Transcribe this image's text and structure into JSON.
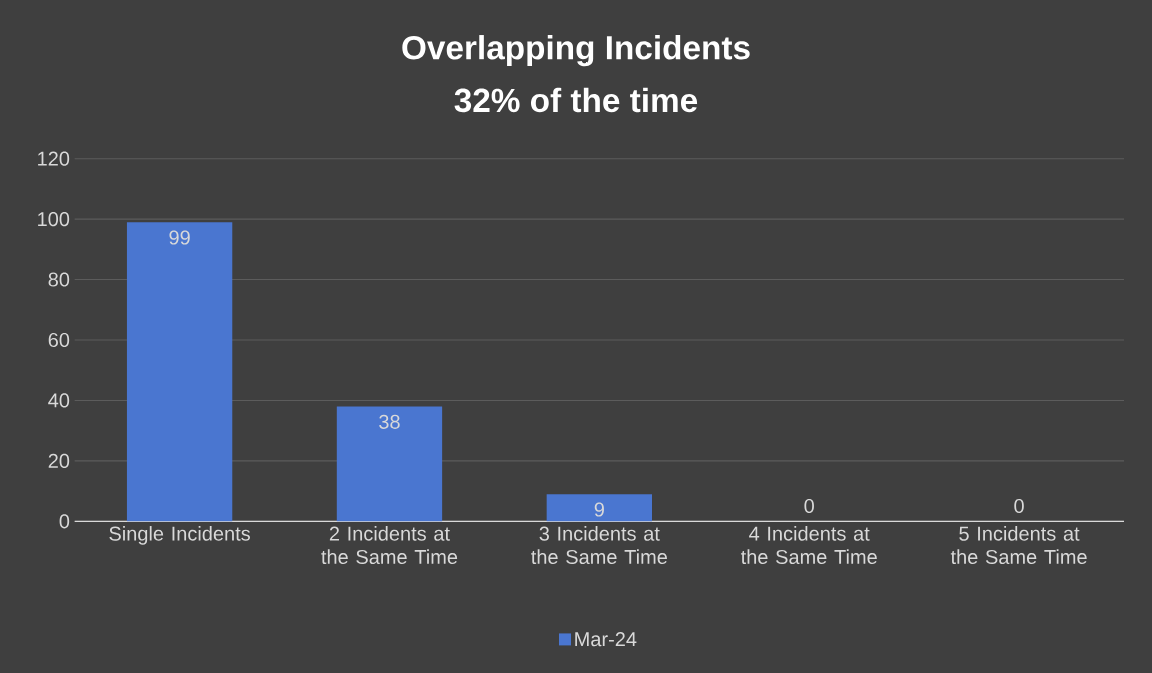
{
  "chart_data": {
    "type": "bar",
    "title": "Overlapping Incidents",
    "subtitle": "32% of the time",
    "categories": [
      "Single Incidents",
      "2 Incidents at the Same Time",
      "3 Incidents at the Same Time",
      "4 Incidents at the Same Time",
      "5 Incidents at the Same Time"
    ],
    "series": [
      {
        "name": "Mar-24",
        "color": "#4a76d0",
        "values": [
          99,
          38,
          9,
          0,
          0
        ]
      }
    ],
    "ylim": [
      0,
      120
    ],
    "yticks": [
      0,
      20,
      40,
      60,
      80,
      100,
      120
    ],
    "grid": "y",
    "legend": "bottom",
    "data_labels": true
  }
}
